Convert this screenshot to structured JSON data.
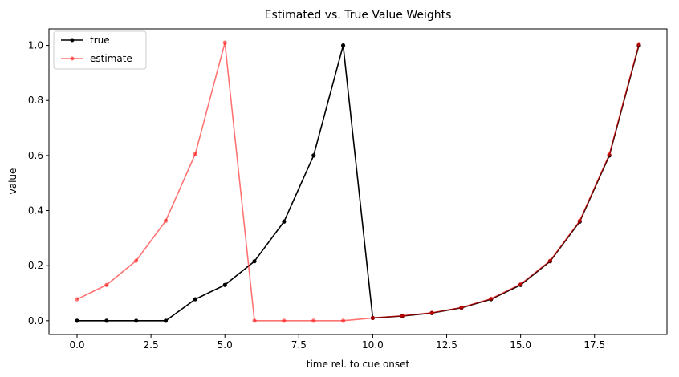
{
  "chart_data": {
    "type": "line",
    "title": "Estimated vs. True Value Weights",
    "xlabel": "time rel. to cue onset",
    "ylabel": "value",
    "xlim": [
      -0.95,
      19.95
    ],
    "ylim": [
      -0.05,
      1.06
    ],
    "xticks": [
      0,
      2.5,
      5,
      7.5,
      10,
      12.5,
      15,
      17.5
    ],
    "xtick_labels": [
      "0.0",
      "2.5",
      "5.0",
      "7.5",
      "10.0",
      "12.5",
      "15.0",
      "17.5"
    ],
    "yticks": [
      0,
      0.2,
      0.4,
      0.6,
      0.8,
      1.0
    ],
    "ytick_labels": [
      "0.0",
      "0.2",
      "0.4",
      "0.6",
      "0.8",
      "1.0"
    ],
    "grid": false,
    "legend_position": "top-left",
    "x": [
      0,
      1,
      2,
      3,
      4,
      5,
      6,
      7,
      8,
      9,
      10,
      11,
      12,
      13,
      14,
      15,
      16,
      17,
      18,
      19
    ],
    "series": [
      {
        "name": "true",
        "color": "#000000",
        "values": [
          0,
          0,
          0,
          0,
          0.078,
          0.13,
          0.216,
          0.36,
          0.6,
          1.0,
          0.01,
          0.017,
          0.028,
          0.047,
          0.078,
          0.13,
          0.216,
          0.36,
          0.6,
          1.0
        ]
      },
      {
        "name": "estimate",
        "color": "#ff0000",
        "opacity": 0.55,
        "values": [
          0.078,
          0.13,
          0.218,
          0.363,
          0.606,
          1.01,
          0.0,
          0.0,
          0.0,
          0.0,
          0.01,
          0.018,
          0.029,
          0.048,
          0.08,
          0.133,
          0.218,
          0.363,
          0.604,
          1.005
        ]
      }
    ]
  }
}
